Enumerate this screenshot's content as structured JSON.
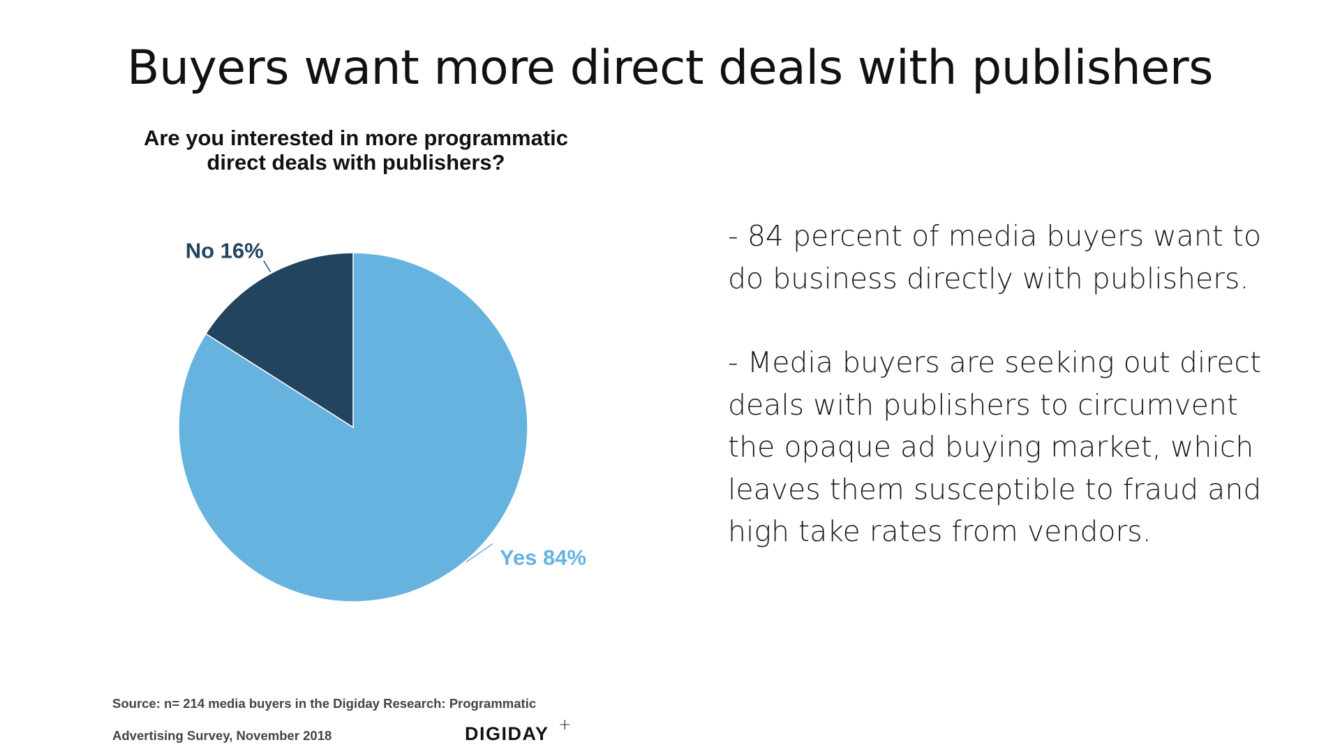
{
  "title": "Buyers want more direct deals with publishers",
  "chart_data": {
    "type": "pie",
    "title_lines": [
      "Are you interested in more programmatic",
      "direct deals with publishers?"
    ],
    "slices": [
      {
        "name": "No",
        "value": 16,
        "label": "No 16%",
        "color": "#22445f"
      },
      {
        "name": "Yes",
        "value": 84,
        "label": "Yes 84%",
        "color": "#66b3e0"
      }
    ]
  },
  "bullets": [
    [
      "- 84 percent of media buyers want to",
      "do business directly with publishers."
    ],
    [
      "- Media buyers are seeking out direct",
      "deals with publishers to circumvent",
      "the opaque ad buying market, which",
      "leaves them susceptible to fraud and",
      "high take rates from vendors."
    ]
  ],
  "source": [
    "Source: n= 214 media buyers in the Digiday Research: Programmatic",
    "Advertising Survey, November 2018"
  ],
  "logo": {
    "text": "DIGIDAY",
    "plus": "+"
  }
}
